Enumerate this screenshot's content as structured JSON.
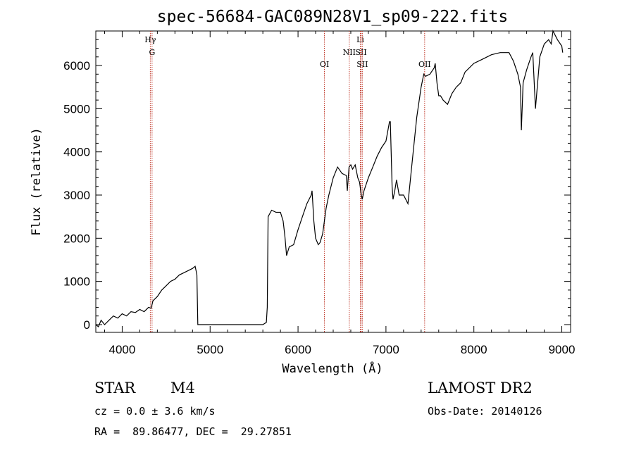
{
  "chart_data": {
    "type": "line",
    "title": "spec-56684-GAC089N28V1_sp09-222.fits",
    "xlabel": "Wavelength (Å)",
    "ylabel": "Flux (relative)",
    "xlim": [
      3700,
      9100
    ],
    "ylim": [
      -180,
      6800
    ],
    "xticks": [
      4000,
      5000,
      6000,
      7000,
      8000,
      9000
    ],
    "yticks": [
      0,
      1000,
      2000,
      3000,
      4000,
      5000,
      6000
    ],
    "grid": false,
    "line_color": "#000000",
    "marker_color": "#c0392b",
    "series": [
      {
        "x": [
          3700,
          3730,
          3760,
          3800,
          3850,
          3900,
          3950,
          4000,
          4050,
          4100,
          4150,
          4200,
          4250,
          4300,
          4330,
          4350,
          4400,
          4450,
          4500,
          4550,
          4600,
          4650,
          4700,
          4750,
          4800,
          4830,
          4840,
          4850,
          4860,
          5000,
          5200,
          5400,
          5600,
          5640,
          5650,
          5660,
          5700,
          5750,
          5800,
          5830,
          5850,
          5870,
          5900,
          5950,
          6000,
          6050,
          6100,
          6150,
          6160,
          6180,
          6200,
          6230,
          6250,
          6280,
          6300,
          6320,
          6350,
          6400,
          6450,
          6500,
          6550,
          6560,
          6580,
          6600,
          6620,
          6650,
          6680,
          6700,
          6720,
          6730,
          6750,
          6800,
          6850,
          6900,
          6950,
          7000,
          7040,
          7050,
          7070,
          7080,
          7100,
          7120,
          7150,
          7200,
          7250,
          7300,
          7350,
          7400,
          7430,
          7450,
          7500,
          7550,
          7560,
          7580,
          7600,
          7620,
          7650,
          7700,
          7750,
          7800,
          7850,
          7900,
          8000,
          8100,
          8200,
          8300,
          8400,
          8450,
          8500,
          8530,
          8540,
          8560,
          8600,
          8650,
          8670,
          8700,
          8750,
          8800,
          8850,
          8880,
          8900,
          8950,
          9000,
          9010
        ],
        "y": [
          0,
          -50,
          100,
          0,
          100,
          200,
          150,
          250,
          200,
          300,
          280,
          350,
          300,
          400,
          380,
          550,
          650,
          800,
          900,
          1000,
          1050,
          1150,
          1200,
          1250,
          1300,
          1350,
          1250,
          1150,
          0,
          0,
          0,
          0,
          0,
          50,
          400,
          2500,
          2650,
          2600,
          2600,
          2400,
          2050,
          1600,
          1800,
          1850,
          2200,
          2500,
          2800,
          3000,
          3100,
          2400,
          2000,
          1850,
          1900,
          2100,
          2400,
          2700,
          3000,
          3400,
          3650,
          3500,
          3450,
          3100,
          3650,
          3700,
          3600,
          3700,
          3400,
          3300,
          3000,
          2900,
          3100,
          3400,
          3650,
          3900,
          4100,
          4250,
          4700,
          4700,
          3200,
          2900,
          3100,
          3350,
          3000,
          3000,
          2800,
          3800,
          4800,
          5500,
          5800,
          5750,
          5800,
          5950,
          6050,
          5600,
          5300,
          5300,
          5200,
          5100,
          5350,
          5500,
          5600,
          5850,
          6050,
          6150,
          6250,
          6300,
          6300,
          6100,
          5800,
          5500,
          4500,
          5600,
          5900,
          6200,
          6300,
          5000,
          6200,
          6500,
          6600,
          6500,
          6800,
          6600,
          6450,
          6300
        ]
      }
    ],
    "line_markers": [
      {
        "x": 4320,
        "label": "Hγ"
      },
      {
        "x": 4340,
        "label": "G"
      },
      {
        "x": 6300,
        "label": "OI"
      },
      {
        "x": 6583,
        "label": "NII"
      },
      {
        "x": 6708,
        "label": "Li"
      },
      {
        "x": 6717,
        "label": "SII"
      },
      {
        "x": 6731,
        "label": "SII"
      },
      {
        "x": 7440,
        "label": "OII"
      }
    ]
  },
  "footer": {
    "object_type": "STAR",
    "subclass": "M4",
    "survey": "LAMOST DR2",
    "cz": "cz = 0.0 ± 3.6 km/s",
    "obs_date": "Obs-Date: 20140126",
    "coords": "RA =  89.86477, DEC =  29.27851"
  }
}
